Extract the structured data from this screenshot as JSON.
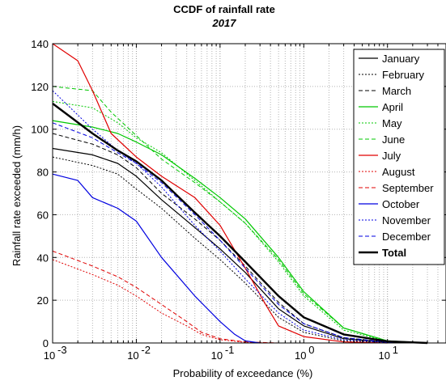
{
  "chart_data": {
    "type": "line",
    "title": "CCDF of rainfall rate",
    "subtitle": "2017",
    "xlabel": "Probability of exceedance (%)",
    "ylabel": "Rainfall rate exceeded (mm/h)",
    "x_scale": "log",
    "xlim": [
      0.001,
      50
    ],
    "ylim": [
      0,
      140
    ],
    "x_tick_labels": [
      {
        "value": 0.001,
        "base": "10",
        "exp": "-3"
      },
      {
        "value": 0.01,
        "base": "10",
        "exp": "-2"
      },
      {
        "value": 0.1,
        "base": "10",
        "exp": "-1"
      },
      {
        "value": 1,
        "base": "10",
        "exp": "0"
      },
      {
        "value": 10,
        "base": "10",
        "exp": "1"
      }
    ],
    "y_ticks": [
      0,
      20,
      40,
      60,
      80,
      100,
      120,
      140
    ],
    "y_tick_labels": [
      "0",
      "20",
      "40",
      "60",
      "80",
      "100",
      "120",
      "140"
    ],
    "grid": true,
    "legend_position": "top-right",
    "series": [
      {
        "name": "January",
        "color": "#000000",
        "dash": "solid",
        "width": 1.2,
        "points": [
          [
            0.001,
            91
          ],
          [
            0.003,
            88
          ],
          [
            0.006,
            84
          ],
          [
            0.01,
            78
          ],
          [
            0.02,
            67
          ],
          [
            0.05,
            54
          ],
          [
            0.1,
            44
          ],
          [
            0.2,
            33
          ],
          [
            0.5,
            16
          ],
          [
            1,
            8
          ],
          [
            3,
            2
          ],
          [
            10,
            0.3
          ],
          [
            30,
            0
          ]
        ]
      },
      {
        "name": "February",
        "color": "#000000",
        "dash": "2,2",
        "width": 1,
        "points": [
          [
            0.001,
            87
          ],
          [
            0.003,
            83
          ],
          [
            0.006,
            79
          ],
          [
            0.01,
            72
          ],
          [
            0.02,
            63
          ],
          [
            0.05,
            49
          ],
          [
            0.1,
            39
          ],
          [
            0.2,
            28
          ],
          [
            0.5,
            12
          ],
          [
            1,
            5
          ],
          [
            3,
            1
          ],
          [
            10,
            0.2
          ],
          [
            30,
            0
          ]
        ]
      },
      {
        "name": "March",
        "color": "#000000",
        "dash": "5,3",
        "width": 1,
        "points": [
          [
            0.001,
            98
          ],
          [
            0.003,
            93
          ],
          [
            0.006,
            88
          ],
          [
            0.01,
            82
          ],
          [
            0.02,
            70
          ],
          [
            0.05,
            58
          ],
          [
            0.1,
            48
          ],
          [
            0.2,
            36
          ],
          [
            0.5,
            19
          ],
          [
            1,
            9
          ],
          [
            3,
            2.5
          ],
          [
            10,
            0.4
          ],
          [
            30,
            0
          ]
        ]
      },
      {
        "name": "April",
        "color": "#00c800",
        "dash": "solid",
        "width": 1.2,
        "points": [
          [
            0.001,
            104
          ],
          [
            0.003,
            101
          ],
          [
            0.006,
            98
          ],
          [
            0.01,
            94
          ],
          [
            0.02,
            88
          ],
          [
            0.05,
            77
          ],
          [
            0.1,
            68
          ],
          [
            0.2,
            58
          ],
          [
            0.5,
            40
          ],
          [
            1,
            24
          ],
          [
            3,
            7
          ],
          [
            10,
            1
          ],
          [
            30,
            0
          ]
        ]
      },
      {
        "name": "May",
        "color": "#00c800",
        "dash": "2,2",
        "width": 1,
        "points": [
          [
            0.001,
            113
          ],
          [
            0.003,
            110
          ],
          [
            0.006,
            103
          ],
          [
            0.01,
            96
          ],
          [
            0.02,
            89
          ],
          [
            0.05,
            76
          ],
          [
            0.1,
            66
          ],
          [
            0.2,
            56
          ],
          [
            0.5,
            38
          ],
          [
            1,
            22
          ],
          [
            3,
            6
          ],
          [
            10,
            0.8
          ],
          [
            30,
            0
          ]
        ]
      },
      {
        "name": "June",
        "color": "#00c800",
        "dash": "5,3",
        "width": 1,
        "points": [
          [
            0.001,
            120
          ],
          [
            0.003,
            118
          ],
          [
            0.005,
            108
          ],
          [
            0.01,
            97
          ],
          [
            0.02,
            86
          ],
          [
            0.05,
            75
          ],
          [
            0.1,
            66
          ],
          [
            0.2,
            56
          ],
          [
            0.5,
            39
          ],
          [
            1,
            23
          ],
          [
            3,
            7
          ],
          [
            10,
            1
          ],
          [
            30,
            0
          ]
        ]
      },
      {
        "name": "July",
        "color": "#e00000",
        "dash": "solid",
        "width": 1.2,
        "points": [
          [
            0.001,
            140
          ],
          [
            0.002,
            132
          ],
          [
            0.003,
            118
          ],
          [
            0.005,
            98
          ],
          [
            0.01,
            87
          ],
          [
            0.02,
            78
          ],
          [
            0.05,
            68
          ],
          [
            0.1,
            55
          ],
          [
            0.2,
            35
          ],
          [
            0.35,
            18
          ],
          [
            0.5,
            8
          ],
          [
            1,
            3
          ],
          [
            3,
            0.5
          ],
          [
            10,
            0
          ]
        ]
      },
      {
        "name": "August",
        "color": "#e00000",
        "dash": "2,2",
        "width": 1,
        "points": [
          [
            0.001,
            39
          ],
          [
            0.003,
            32
          ],
          [
            0.006,
            27
          ],
          [
            0.01,
            22
          ],
          [
            0.02,
            14
          ],
          [
            0.04,
            8
          ],
          [
            0.06,
            4
          ],
          [
            0.1,
            1.5
          ],
          [
            0.2,
            0.3
          ],
          [
            0.5,
            0
          ]
        ]
      },
      {
        "name": "September",
        "color": "#e00000",
        "dash": "5,3",
        "width": 1,
        "points": [
          [
            0.001,
            43
          ],
          [
            0.003,
            36
          ],
          [
            0.006,
            31
          ],
          [
            0.01,
            26
          ],
          [
            0.02,
            18
          ],
          [
            0.04,
            10
          ],
          [
            0.06,
            5
          ],
          [
            0.1,
            2
          ],
          [
            0.2,
            0.5
          ],
          [
            0.5,
            0
          ]
        ]
      },
      {
        "name": "October",
        "color": "#0000e0",
        "dash": "solid",
        "width": 1.2,
        "points": [
          [
            0.001,
            79
          ],
          [
            0.002,
            76
          ],
          [
            0.003,
            68
          ],
          [
            0.006,
            63
          ],
          [
            0.01,
            57
          ],
          [
            0.02,
            40
          ],
          [
            0.05,
            22
          ],
          [
            0.1,
            10
          ],
          [
            0.15,
            4
          ],
          [
            0.2,
            1
          ],
          [
            0.3,
            0
          ]
        ]
      },
      {
        "name": "November",
        "color": "#0000e0",
        "dash": "2,2",
        "width": 1,
        "points": [
          [
            0.001,
            118
          ],
          [
            0.003,
            100
          ],
          [
            0.006,
            90
          ],
          [
            0.01,
            84
          ],
          [
            0.02,
            73
          ],
          [
            0.05,
            55
          ],
          [
            0.1,
            43
          ],
          [
            0.2,
            30
          ],
          [
            0.5,
            14
          ],
          [
            1,
            6
          ],
          [
            3,
            1.5
          ],
          [
            10,
            0.2
          ],
          [
            30,
            0
          ]
        ]
      },
      {
        "name": "December",
        "color": "#0000e0",
        "dash": "5,3",
        "width": 1,
        "points": [
          [
            0.001,
            103
          ],
          [
            0.003,
            96
          ],
          [
            0.006,
            89
          ],
          [
            0.01,
            84
          ],
          [
            0.02,
            75
          ],
          [
            0.05,
            60
          ],
          [
            0.1,
            48
          ],
          [
            0.2,
            35
          ],
          [
            0.5,
            18
          ],
          [
            1,
            9
          ],
          [
            3,
            2.5
          ],
          [
            10,
            0.4
          ],
          [
            30,
            0
          ]
        ]
      },
      {
        "name": "Total",
        "color": "#000000",
        "dash": "solid",
        "width": 2.4,
        "points": [
          [
            0.001,
            112
          ],
          [
            0.003,
            98
          ],
          [
            0.006,
            90
          ],
          [
            0.01,
            85
          ],
          [
            0.02,
            76
          ],
          [
            0.05,
            61
          ],
          [
            0.1,
            50
          ],
          [
            0.2,
            38
          ],
          [
            0.5,
            22
          ],
          [
            1,
            12
          ],
          [
            3,
            4
          ],
          [
            10,
            0.8
          ],
          [
            30,
            0
          ]
        ]
      }
    ]
  }
}
